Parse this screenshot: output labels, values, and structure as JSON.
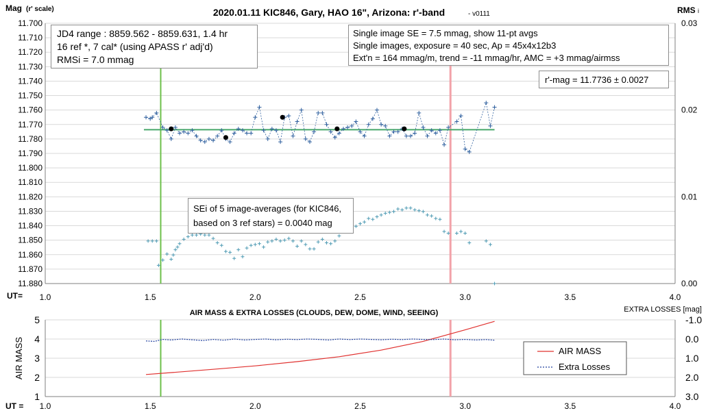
{
  "chart_data": [
    {
      "type": "scatter",
      "title": "2020.01.11 KIC846, Gary, HAO 16\", Arizona: r'-band",
      "version": "- v0111",
      "ylabel": "Mag",
      "ylabel_unit": "(r' scale)",
      "y2label": "RMS",
      "y2label_sub": "i",
      "xlabel": "UT=",
      "xlim": [
        1.0,
        4.0
      ],
      "ylim": [
        11.88,
        11.7
      ],
      "y2lim": [
        0.0,
        0.03
      ],
      "x_ticks": [
        "1.0",
        "1.5",
        "2.0",
        "2.5",
        "3.0",
        "3.5",
        "4.0"
      ],
      "y_ticks": [
        "11.700",
        "11.710",
        "11.720",
        "11.730",
        "11.740",
        "11.750",
        "11.760",
        "11.770",
        "11.780",
        "11.790",
        "11.800",
        "11.810",
        "11.820",
        "11.830",
        "11.840",
        "11.850",
        "11.860",
        "11.870",
        "11.880"
      ],
      "y2_ticks": [
        "0.03",
        "0.02",
        "0.01",
        "0.00"
      ],
      "grid": "horizontal",
      "colors": {
        "mag": "#2e5f9e",
        "avg": "#000000",
        "rms": "#4f9bb4",
        "mean_line": "#48a86a",
        "green_marker": "#6cc04a",
        "pink_marker": "#f2a2a8"
      },
      "vertical_markers": [
        1.55,
        2.93
      ],
      "mean_mag": 11.7736,
      "mean_span": [
        1.47,
        3.14
      ],
      "series": [
        {
          "x": [
            1.48,
            1.5,
            1.51,
            1.53,
            1.56,
            1.58,
            1.6,
            1.62,
            1.64,
            1.66,
            1.68,
            1.7,
            1.72,
            1.74,
            1.76,
            1.78,
            1.8,
            1.82,
            1.84,
            1.86,
            1.88,
            1.9,
            1.92,
            1.94,
            1.96,
            1.98,
            2.0,
            2.02,
            2.04,
            2.06,
            2.08,
            2.1,
            2.12,
            2.14,
            2.16,
            2.18,
            2.2,
            2.22,
            2.24,
            2.26,
            2.28,
            2.3,
            2.32,
            2.34,
            2.36,
            2.38,
            2.4,
            2.42,
            2.44,
            2.46,
            2.48,
            2.5,
            2.52,
            2.54,
            2.56,
            2.58,
            2.6,
            2.62,
            2.64,
            2.66,
            2.68,
            2.7,
            2.72,
            2.74,
            2.76,
            2.78,
            2.8,
            2.82,
            2.84,
            2.86,
            2.88,
            2.9,
            2.92,
            2.96,
            2.98,
            3.0,
            3.02,
            3.1,
            3.12,
            3.14
          ],
          "y": [
            11.765,
            11.766,
            11.765,
            11.762,
            11.772,
            11.774,
            11.78,
            11.772,
            11.776,
            11.775,
            11.776,
            11.774,
            11.778,
            11.781,
            11.782,
            11.78,
            11.781,
            11.778,
            11.774,
            11.78,
            11.782,
            11.776,
            11.773,
            11.774,
            11.776,
            11.776,
            11.765,
            11.758,
            11.774,
            11.78,
            11.773,
            11.774,
            11.782,
            11.765,
            11.764,
            11.778,
            11.768,
            11.76,
            11.78,
            11.782,
            11.775,
            11.762,
            11.762,
            11.77,
            11.775,
            11.779,
            11.776,
            11.773,
            11.772,
            11.771,
            11.768,
            11.775,
            11.778,
            11.77,
            11.766,
            11.76,
            11.77,
            11.771,
            11.778,
            11.775,
            11.775,
            11.773,
            11.778,
            11.778,
            11.776,
            11.762,
            11.772,
            11.778,
            11.774,
            11.776,
            11.774,
            11.784,
            11.772,
            11.768,
            11.764,
            11.787,
            11.789,
            11.755,
            11.771,
            11.758
          ],
          "name": "",
          "role": "single-image-mag"
        },
        {
          "x": [
            1.6,
            1.86,
            2.13,
            2.39,
            2.71
          ],
          "y": [
            11.773,
            11.779,
            11.765,
            11.773,
            11.773
          ],
          "name": "",
          "role": "11-pt-averages"
        },
        {
          "x": [
            1.49,
            1.51,
            1.53,
            1.54,
            1.56,
            1.58,
            1.6,
            1.61,
            1.62,
            1.63,
            1.64,
            1.66,
            1.68,
            1.7,
            1.72,
            1.74,
            1.76,
            1.78,
            1.8,
            1.82,
            1.84,
            1.86,
            1.88,
            1.9,
            1.92,
            1.94,
            1.96,
            1.98,
            2.0,
            2.02,
            2.04,
            2.06,
            2.08,
            2.1,
            2.12,
            2.14,
            2.16,
            2.18,
            2.2,
            2.22,
            2.24,
            2.26,
            2.28,
            2.3,
            2.32,
            2.34,
            2.36,
            2.38,
            2.4,
            2.42,
            2.44,
            2.46,
            2.48,
            2.5,
            2.52,
            2.54,
            2.56,
            2.58,
            2.6,
            2.62,
            2.64,
            2.66,
            2.68,
            2.7,
            2.72,
            2.74,
            2.76,
            2.78,
            2.8,
            2.82,
            2.84,
            2.86,
            2.88,
            2.9,
            2.92,
            2.96,
            2.98,
            3.0,
            3.02,
            3.1,
            3.12,
            3.14
          ],
          "y2": [
            0.0049,
            0.0049,
            0.0049,
            0.0021,
            0.0027,
            0.0034,
            0.0028,
            0.0033,
            0.0039,
            0.0042,
            0.0046,
            0.0051,
            0.0054,
            0.0056,
            0.0056,
            0.0057,
            0.0056,
            0.0056,
            0.0052,
            0.0047,
            0.0044,
            0.0037,
            0.0036,
            0.0029,
            0.0039,
            0.0031,
            0.0041,
            0.0044,
            0.0045,
            0.0046,
            0.0042,
            0.0048,
            0.0049,
            0.0051,
            0.0049,
            0.005,
            0.0052,
            0.0049,
            0.0043,
            0.0049,
            0.0045,
            0.004,
            0.004,
            0.0048,
            0.0051,
            0.0047,
            0.0046,
            0.0049,
            0.0055,
            0.006,
            0.0063,
            0.0067,
            0.0066,
            0.0069,
            0.0071,
            0.0075,
            0.0074,
            0.0077,
            0.0079,
            0.0081,
            0.0082,
            0.0083,
            0.0086,
            0.0085,
            0.0087,
            0.0087,
            0.0085,
            0.0084,
            0.0083,
            0.0079,
            0.0078,
            0.0075,
            0.0074,
            0.006,
            0.0058,
            0.0058,
            0.006,
            0.0058,
            0.0047,
            0.0049,
            0.0045,
            0.0
          ],
          "name": "",
          "role": "RMSi"
        }
      ],
      "annotations": {
        "box1": [
          "JD4 range : 8859.562 - 8859.631,  1.4  hr",
          "16 ref *, 7 cal* (using APASS r' adj'd)",
          "RMSi = 7.0 mmag"
        ],
        "box2": [
          "Single image SE = 7.5 mmag, show  11-pt avgs",
          "Single images, exposure = 40 sec, Ap = 45x4x12b3",
          "Ext'n = 164 mmag/m, trend =  -11 mmag/hr, AMC = +3 mmag/airmss"
        ],
        "box3": "r'-mag = 11.7736 ± 0.0027",
        "box4": [
          "SEi of 5 image-averages (for KIC846,",
          "based on 3 ref stars) = 0.0040 mag"
        ]
      }
    },
    {
      "type": "line",
      "title": "AIR MASS & EXTRA LOSSES (CLOUDS, DEW, DOME, WIND, SEEING)",
      "ylabel": "AIR MASS",
      "y2label": "EXTRA LOSSES [mag]",
      "xlabel": "UT =",
      "xlim": [
        1.0,
        4.0
      ],
      "ylim": [
        1,
        5
      ],
      "y2lim": [
        3.0,
        -1.0
      ],
      "x_ticks": [
        "1.0",
        "1.5",
        "2.0",
        "2.5",
        "3.0",
        "3.5",
        "4.0"
      ],
      "y_ticks": [
        "5",
        "4",
        "3",
        "2",
        "1"
      ],
      "y2_ticks": [
        "-1.0",
        "0.0",
        "1.0",
        "2.0",
        "3.0"
      ],
      "legend_position": "bottom-right",
      "colors": {
        "airmass": "#e0302e",
        "extra": "#1f3f9e",
        "green_marker": "#6cc04a",
        "pink_marker": "#f2a2a8"
      },
      "vertical_markers": [
        1.55,
        2.93
      ],
      "series": [
        {
          "name": "AIR MASS",
          "x": [
            1.48,
            1.6,
            1.8,
            2.0,
            2.2,
            2.4,
            2.6,
            2.8,
            3.0,
            3.14
          ],
          "y": [
            2.15,
            2.25,
            2.42,
            2.6,
            2.82,
            3.08,
            3.42,
            3.88,
            4.48,
            4.92
          ]
        },
        {
          "name": "Extra Losses",
          "x": [
            1.48,
            1.52,
            1.56,
            1.6,
            1.65,
            1.7,
            1.75,
            1.8,
            1.85,
            1.9,
            1.95,
            2.0,
            2.05,
            2.1,
            2.15,
            2.2,
            2.25,
            2.3,
            2.35,
            2.4,
            2.45,
            2.5,
            2.55,
            2.6,
            2.65,
            2.7,
            2.75,
            2.8,
            2.85,
            2.9,
            2.95,
            3.0,
            3.05,
            3.1,
            3.14
          ],
          "y2": [
            0.1,
            0.12,
            0.02,
            0.05,
            0.0,
            0.04,
            0.08,
            0.02,
            0.06,
            0.0,
            0.05,
            0.02,
            0.0,
            0.04,
            0.01,
            0.03,
            0.0,
            0.02,
            0.05,
            0.0,
            0.03,
            0.0,
            0.02,
            0.04,
            0.01,
            0.03,
            0.0,
            0.02,
            0.03,
            0.0,
            0.04,
            0.02,
            0.05,
            0.03,
            0.06
          ]
        }
      ]
    }
  ]
}
